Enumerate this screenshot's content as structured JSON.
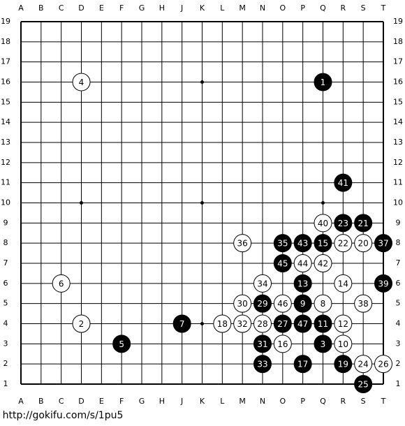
{
  "board": {
    "columns": [
      "A",
      "B",
      "C",
      "D",
      "E",
      "F",
      "G",
      "H",
      "J",
      "K",
      "L",
      "M",
      "N",
      "O",
      "P",
      "Q",
      "R",
      "S",
      "T"
    ],
    "rows": [
      19,
      18,
      17,
      16,
      15,
      14,
      13,
      12,
      11,
      10,
      9,
      8,
      7,
      6,
      5,
      4,
      3,
      2,
      1
    ],
    "stones": [
      {
        "number": 1,
        "color": "black",
        "point": "Q16"
      },
      {
        "number": 2,
        "color": "white",
        "point": "D4"
      },
      {
        "number": 3,
        "color": "black",
        "point": "Q3"
      },
      {
        "number": 4,
        "color": "white",
        "point": "D16"
      },
      {
        "number": 5,
        "color": "black",
        "point": "F3"
      },
      {
        "number": 6,
        "color": "white",
        "point": "C6"
      },
      {
        "number": 7,
        "color": "black",
        "point": "J4"
      },
      {
        "number": 8,
        "color": "white",
        "point": "Q5"
      },
      {
        "number": 9,
        "color": "black",
        "point": "P5"
      },
      {
        "number": 10,
        "color": "white",
        "point": "R3"
      },
      {
        "number": 11,
        "color": "black",
        "point": "Q4"
      },
      {
        "number": 12,
        "color": "white",
        "point": "R4"
      },
      {
        "number": 13,
        "color": "black",
        "point": "P6"
      },
      {
        "number": 14,
        "color": "white",
        "point": "R6"
      },
      {
        "number": 15,
        "color": "black",
        "point": "Q8"
      },
      {
        "number": 16,
        "color": "white",
        "point": "O3"
      },
      {
        "number": 17,
        "color": "black",
        "point": "P2"
      },
      {
        "number": 18,
        "color": "white",
        "point": "L4"
      },
      {
        "number": 19,
        "color": "black",
        "point": "R2"
      },
      {
        "number": 20,
        "color": "white",
        "point": "S8"
      },
      {
        "number": 21,
        "color": "black",
        "point": "S9"
      },
      {
        "number": 22,
        "color": "white",
        "point": "R8"
      },
      {
        "number": 23,
        "color": "black",
        "point": "R9"
      },
      {
        "number": 24,
        "color": "white",
        "point": "S2"
      },
      {
        "number": 25,
        "color": "black",
        "point": "S1"
      },
      {
        "number": 26,
        "color": "white",
        "point": "T2"
      },
      {
        "number": 27,
        "color": "black",
        "point": "O4"
      },
      {
        "number": 28,
        "color": "white",
        "point": "N4"
      },
      {
        "number": 29,
        "color": "black",
        "point": "N5"
      },
      {
        "number": 30,
        "color": "white",
        "point": "M5"
      },
      {
        "number": 31,
        "color": "black",
        "point": "N3"
      },
      {
        "number": 32,
        "color": "white",
        "point": "M4"
      },
      {
        "number": 33,
        "color": "black",
        "point": "N2"
      },
      {
        "number": 34,
        "color": "white",
        "point": "N6"
      },
      {
        "number": 35,
        "color": "black",
        "point": "O8"
      },
      {
        "number": 36,
        "color": "white",
        "point": "M8"
      },
      {
        "number": 37,
        "color": "black",
        "point": "T8"
      },
      {
        "number": 38,
        "color": "white",
        "point": "S5"
      },
      {
        "number": 39,
        "color": "black",
        "point": "T6"
      },
      {
        "number": 40,
        "color": "white",
        "point": "Q9"
      },
      {
        "number": 41,
        "color": "black",
        "point": "R11"
      },
      {
        "number": 42,
        "color": "white",
        "point": "Q7"
      },
      {
        "number": 43,
        "color": "black",
        "point": "P8"
      },
      {
        "number": 44,
        "color": "white",
        "point": "P7"
      },
      {
        "number": 45,
        "color": "black",
        "point": "O7"
      },
      {
        "number": 46,
        "color": "white",
        "point": "O5"
      },
      {
        "number": 47,
        "color": "black",
        "point": "P4"
      }
    ]
  },
  "footer": {
    "url": "http://gokifu.com/s/1pu5"
  }
}
